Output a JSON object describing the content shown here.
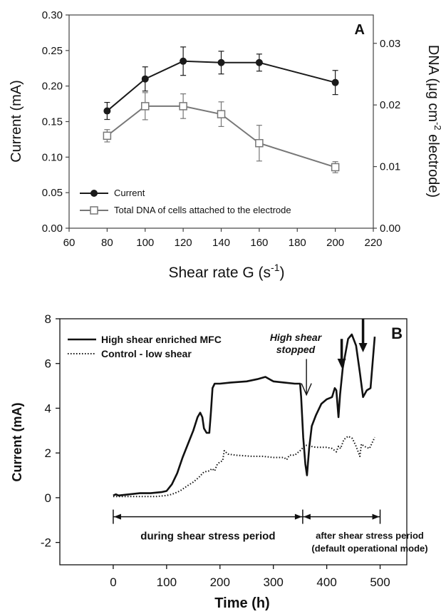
{
  "chart_data": [
    {
      "type": "line",
      "panel_label": "A",
      "xlabel": "Shear rate G (s",
      "xlabel_sup": "-1",
      "xlabel_close": ")",
      "ylabel": "Current (mA)",
      "y2label_pre": "DNA (μg cm",
      "y2label_sup": "-2",
      "y2label_post": " electrode)",
      "xlim": [
        60,
        220
      ],
      "ylim": [
        0.0,
        0.3
      ],
      "y2lim": [
        0.0,
        0.0346
      ],
      "xticks": [
        "60",
        "80",
        "100",
        "120",
        "140",
        "160",
        "180",
        "200",
        "220"
      ],
      "yticks": [
        "0.00",
        "0.05",
        "0.10",
        "0.15",
        "0.20",
        "0.25",
        "0.30"
      ],
      "y2ticks": [
        "0.00",
        "0.01",
        "0.02",
        "0.03"
      ],
      "legend_position": "lower-left",
      "series": [
        {
          "name": "Current",
          "axis": "left",
          "marker": "filled-circle",
          "color": "#1a1a1a",
          "x": [
            80,
            100,
            120,
            140,
            160,
            200
          ],
          "y": [
            0.165,
            0.21,
            0.235,
            0.233,
            0.233,
            0.205
          ],
          "err": [
            0.012,
            0.017,
            0.02,
            0.016,
            0.012,
            0.017
          ]
        },
        {
          "name": "Total DNA of cells attached to the electrode",
          "axis": "right",
          "marker": "open-square",
          "color": "#777777",
          "x": [
            80,
            100,
            120,
            140,
            160,
            200
          ],
          "y": [
            0.015,
            0.0198,
            0.0198,
            0.0185,
            0.0138,
            0.0099
          ],
          "err": [
            0.001,
            0.0022,
            0.002,
            0.002,
            0.0029,
            0.0009
          ]
        }
      ]
    },
    {
      "type": "line",
      "panel_label": "B",
      "xlabel": "Time (h)",
      "ylabel": "Current (mA)",
      "xlim": [
        -100,
        550
      ],
      "ylim": [
        -3,
        8
      ],
      "xticks": [
        "0",
        "100",
        "200",
        "300",
        "400",
        "500"
      ],
      "yticks": [
        "-2",
        "0",
        "2",
        "4",
        "6",
        "8"
      ],
      "legend_position": "top-left",
      "series": [
        {
          "name": "High shear enriched MFC",
          "style": "solid",
          "x": [
            0,
            5,
            10,
            30,
            50,
            70,
            90,
            100,
            110,
            120,
            130,
            140,
            150,
            158,
            163,
            167,
            170,
            175,
            180,
            183,
            186,
            190,
            200,
            220,
            250,
            270,
            285,
            300,
            320,
            340,
            350,
            352,
            356,
            360,
            363,
            367,
            372,
            380,
            390,
            400,
            410,
            415,
            418,
            422,
            425,
            430,
            440,
            447,
            455,
            462,
            468,
            475,
            482,
            490
          ],
          "y": [
            0.1,
            0.15,
            0.1,
            0.15,
            0.2,
            0.2,
            0.25,
            0.3,
            0.6,
            1.1,
            1.8,
            2.4,
            3.0,
            3.6,
            3.8,
            3.6,
            3.1,
            2.9,
            2.9,
            3.8,
            4.9,
            5.1,
            5.1,
            5.15,
            5.2,
            5.3,
            5.4,
            5.2,
            5.15,
            5.1,
            5.1,
            4.5,
            2.7,
            1.5,
            1.0,
            2.2,
            3.2,
            3.7,
            4.2,
            4.4,
            4.5,
            4.9,
            4.8,
            3.6,
            4.6,
            5.8,
            7.1,
            7.3,
            6.8,
            5.6,
            4.5,
            4.8,
            4.9,
            7.2
          ]
        },
        {
          "name": "Control - low shear",
          "style": "dotted",
          "x": [
            0,
            30,
            60,
            80,
            100,
            110,
            125,
            140,
            150,
            160,
            170,
            180,
            185,
            190,
            195,
            200,
            205,
            208,
            215,
            230,
            260,
            280,
            300,
            320,
            325,
            330,
            340,
            350,
            360,
            370,
            380,
            400,
            410,
            418,
            422,
            426,
            432,
            440,
            448,
            455,
            462,
            465,
            470,
            480,
            490
          ],
          "y": [
            0.05,
            0.05,
            0.05,
            0.05,
            0.1,
            0.15,
            0.3,
            0.55,
            0.7,
            0.9,
            1.15,
            1.2,
            1.3,
            1.2,
            1.5,
            1.6,
            1.65,
            2.1,
            1.95,
            1.9,
            1.85,
            1.85,
            1.8,
            1.8,
            1.7,
            1.9,
            1.9,
            2.1,
            2.35,
            2.3,
            2.25,
            2.25,
            2.2,
            2.05,
            2.3,
            2.2,
            2.6,
            2.75,
            2.65,
            2.3,
            1.85,
            2.4,
            2.3,
            2.2,
            2.7
          ]
        }
      ],
      "annotations": {
        "high_shear_line1": "High shear",
        "high_shear_line2": "stopped",
        "during_period": "during shear stress period",
        "after_period_line1": "after shear stress period",
        "after_period_line2": "(default operational mode)"
      },
      "period_bar": {
        "start": 0,
        "split": 355,
        "end": 500,
        "y": -0.85
      }
    }
  ]
}
